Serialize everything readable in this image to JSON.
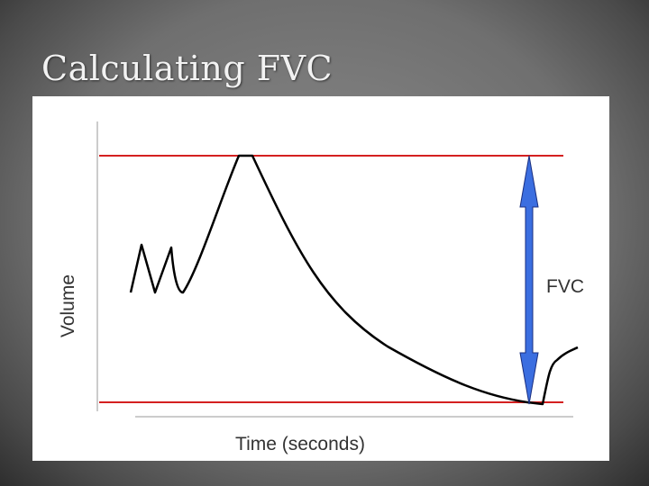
{
  "slide": {
    "title": "Calculating FVC"
  },
  "diagram": {
    "y_axis_label": "Volume",
    "x_axis_label": "Time (seconds)",
    "measure_label": "FVC"
  }
}
